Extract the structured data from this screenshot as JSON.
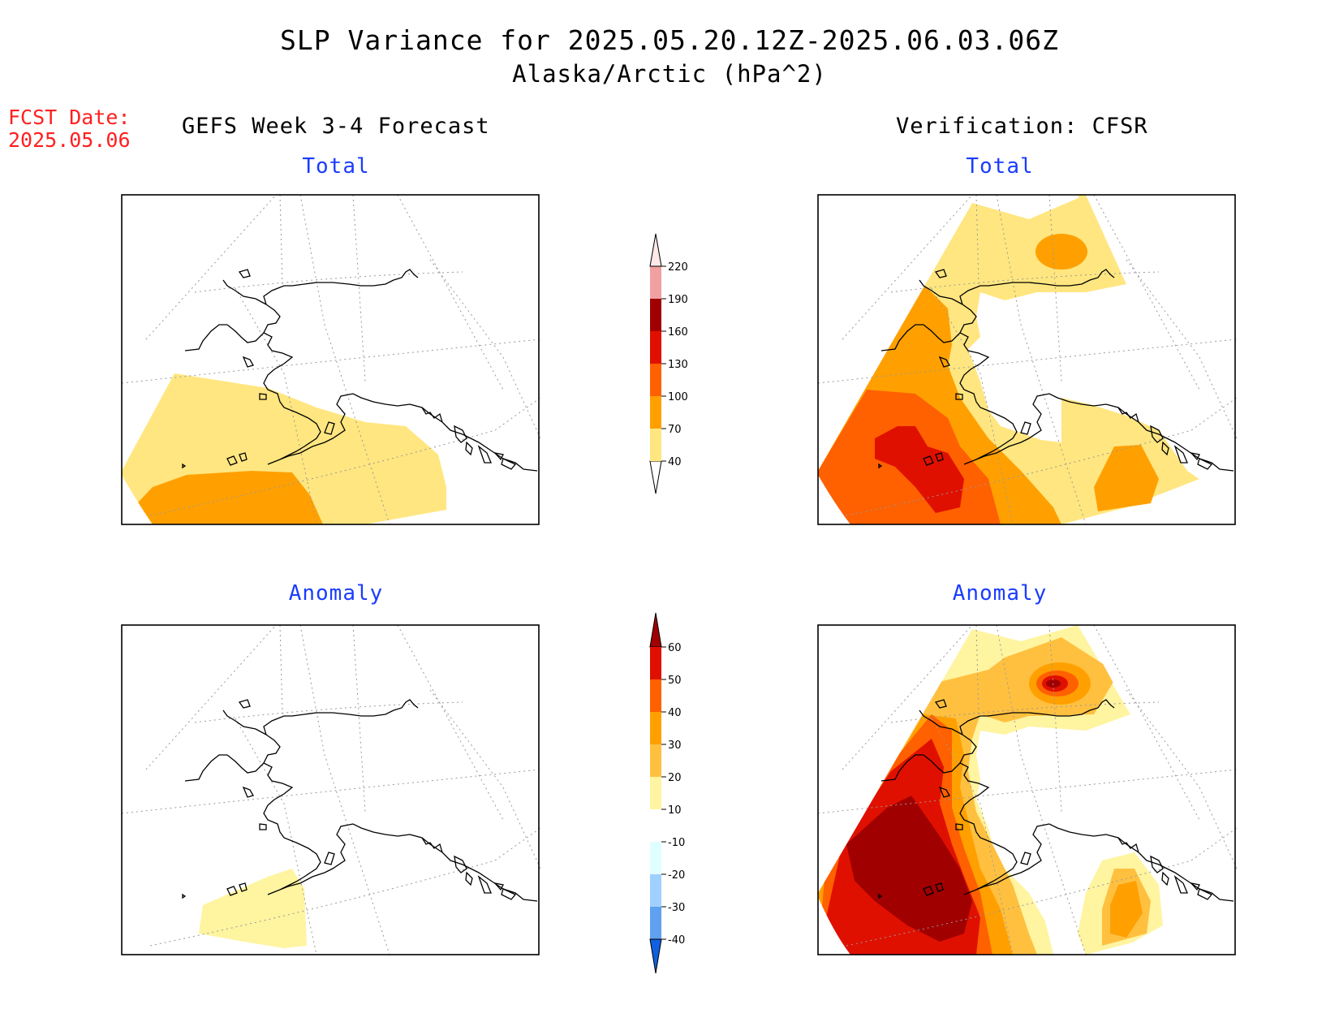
{
  "figure": {
    "title": "SLP Variance for 2025.05.20.12Z-2025.06.03.06Z",
    "subtitle": "Alaska/Arctic (hPa^2)",
    "fcst_label": "FCST Date:",
    "fcst_date": "2025.05.06",
    "left_column": "GEFS Week 3-4 Forecast",
    "right_column": "Verification: CFSR"
  },
  "panels": [
    {
      "id": "forecast-total",
      "title": "Total"
    },
    {
      "id": "verification-total",
      "title": "Total"
    },
    {
      "id": "forecast-anomaly",
      "title": "Anomaly"
    },
    {
      "id": "verification-anomaly",
      "title": "Anomaly"
    }
  ],
  "colorbars": {
    "total": {
      "levels": [
        "40",
        "70",
        "100",
        "130",
        "160",
        "190",
        "220"
      ],
      "colors": [
        "#ffe680",
        "#ffa000",
        "#ff6000",
        "#e01000",
        "#a00000",
        "#f0a0a0",
        "#ffe8e8"
      ]
    },
    "anomaly": {
      "levels": [
        "60",
        "50",
        "40",
        "30",
        "20",
        "10",
        "-10",
        "-20",
        "-30",
        "-40"
      ],
      "colors": [
        "#a00000",
        "#e01000",
        "#ff6000",
        "#ffa000",
        "#ffc040",
        "#fff4a0",
        "#ffffff",
        "#e0ffff",
        "#a0d0ff",
        "#60a0f0",
        "#1060e0"
      ]
    }
  },
  "colors": {
    "fcst_text": "#ff2020",
    "panel_title": "#1a3cff"
  }
}
